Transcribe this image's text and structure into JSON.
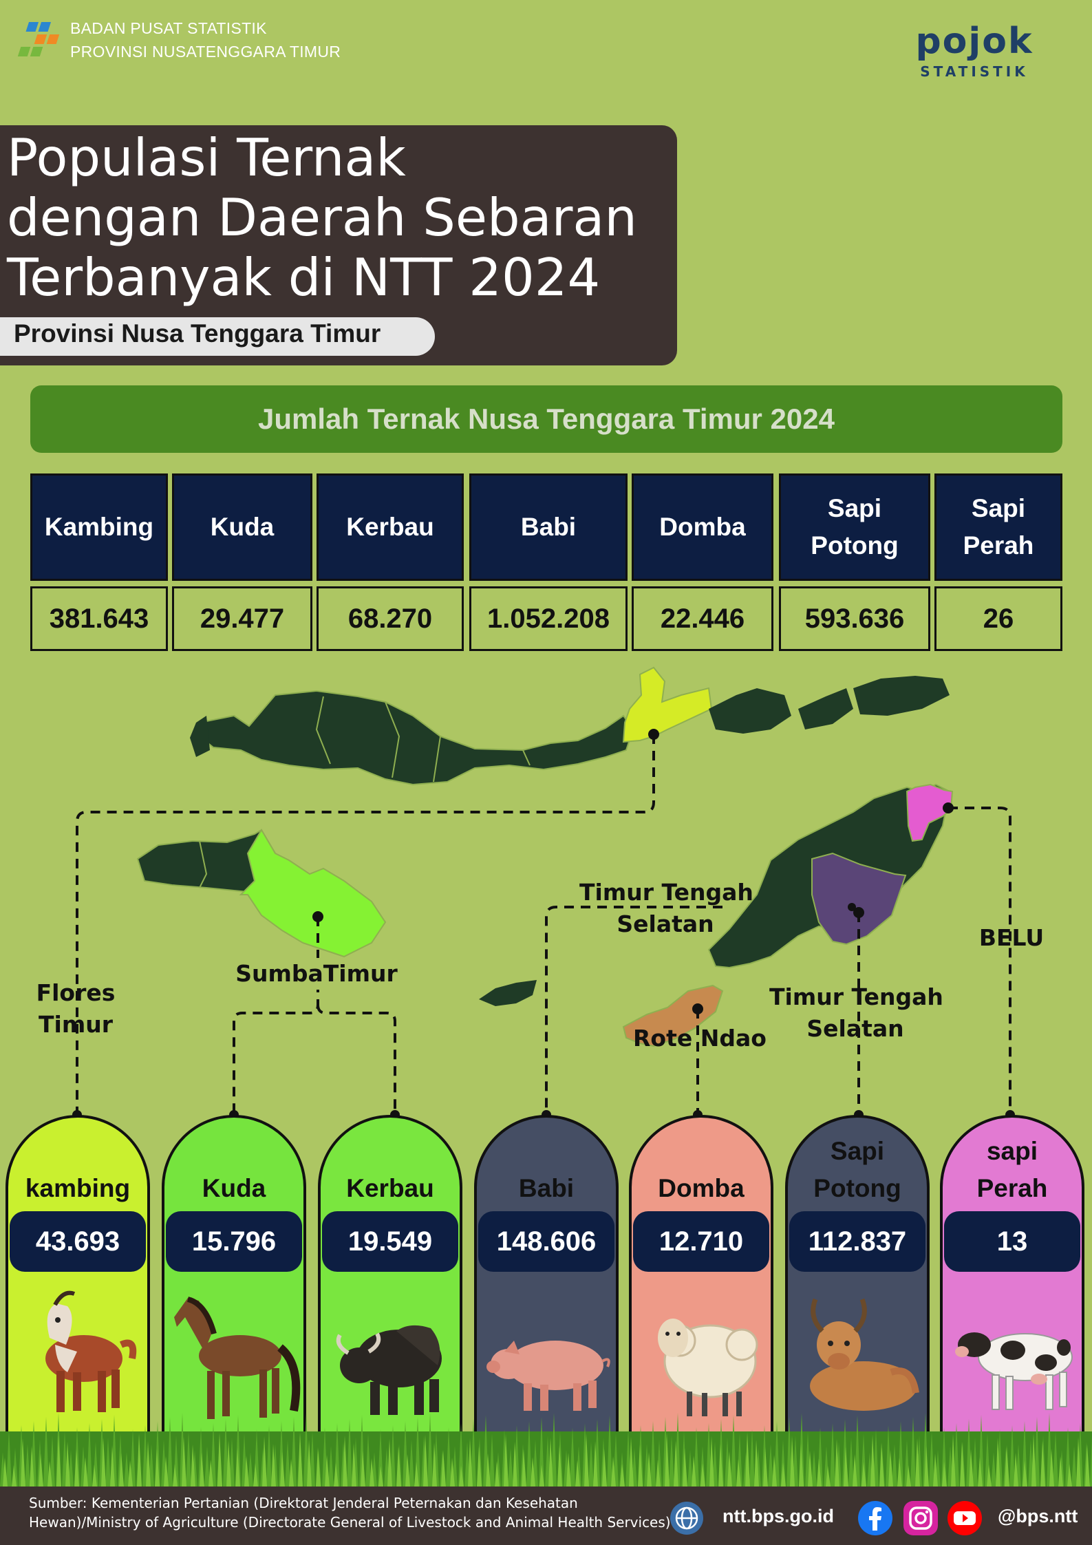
{
  "header": {
    "org_line1": "BADAN PUSAT STATISTIK",
    "org_line2": "PROVINSI NUSATENGGARA TIMUR",
    "pojok_word": "pojok",
    "pojok_sub": "STATISTIK"
  },
  "title": {
    "line1": "Populasi Ternak",
    "line2": "dengan Daerah Sebaran",
    "line3": "Terbanyak di NTT 2024",
    "subtitle": "Provinsi Nusa Tenggara Timur"
  },
  "section_header": "Jumlah Ternak Nusa Tenggara Timur 2024",
  "table": {
    "headers": [
      {
        "l1": "Kambing",
        "l2": ""
      },
      {
        "l1": "Kuda",
        "l2": ""
      },
      {
        "l1": "Kerbau",
        "l2": ""
      },
      {
        "l1": "Babi",
        "l2": ""
      },
      {
        "l1": "Domba",
        "l2": ""
      },
      {
        "l1": "Sapi",
        "l2": "Potong"
      },
      {
        "l1": "Sapi",
        "l2": "Perah"
      }
    ],
    "values": [
      "381.643",
      "29.477",
      "68.270",
      "1.052.208",
      "22.446",
      "593.636",
      "26"
    ]
  },
  "map_labels": {
    "flores_l1": "Flores",
    "flores_l2": "Timur",
    "sumba": "SumbaTimur",
    "tts1_l1": "Timur Tengah",
    "tts1_l2": "Selatan",
    "rote": "Rote Ndao",
    "tts2_l1": "Timur Tengah",
    "tts2_l2": "Selatan",
    "belu": "BELU"
  },
  "cards": [
    {
      "name_l1": "kambing",
      "name_l2": "",
      "value": "43.693",
      "color": "#c9f02f",
      "icon": "goat-icon"
    },
    {
      "name_l1": "Kuda",
      "name_l2": "",
      "value": "15.796",
      "color": "#76e43e",
      "icon": "horse-icon"
    },
    {
      "name_l1": "Kerbau",
      "name_l2": "",
      "value": "19.549",
      "color": "#7ae63f",
      "icon": "buffalo-icon"
    },
    {
      "name_l1": "Babi",
      "name_l2": "",
      "value": "148.606",
      "color": "#454e64",
      "icon": "pig-icon"
    },
    {
      "name_l1": "Domba",
      "name_l2": "",
      "value": "12.710",
      "color": "#ee9a88",
      "icon": "sheep-icon"
    },
    {
      "name_l1": "Sapi",
      "name_l2": "Potong",
      "value": "112.837",
      "color": "#454e64",
      "icon": "bull-icon"
    },
    {
      "name_l1": "sapi",
      "name_l2": "Perah",
      "value": "13",
      "color": "#e27ad2",
      "icon": "dairy-cow-icon"
    }
  ],
  "footer": {
    "source_l1": "Sumber: Kementerian Pertanian (Direktorat Jenderal Peternakan dan Kesehatan",
    "source_l2": "Hewan)/Ministry of Agriculture (Directorate General of Livestock and Animal Health Services)",
    "website": "ntt.bps.go.id",
    "handle": "@bps.ntt"
  }
}
